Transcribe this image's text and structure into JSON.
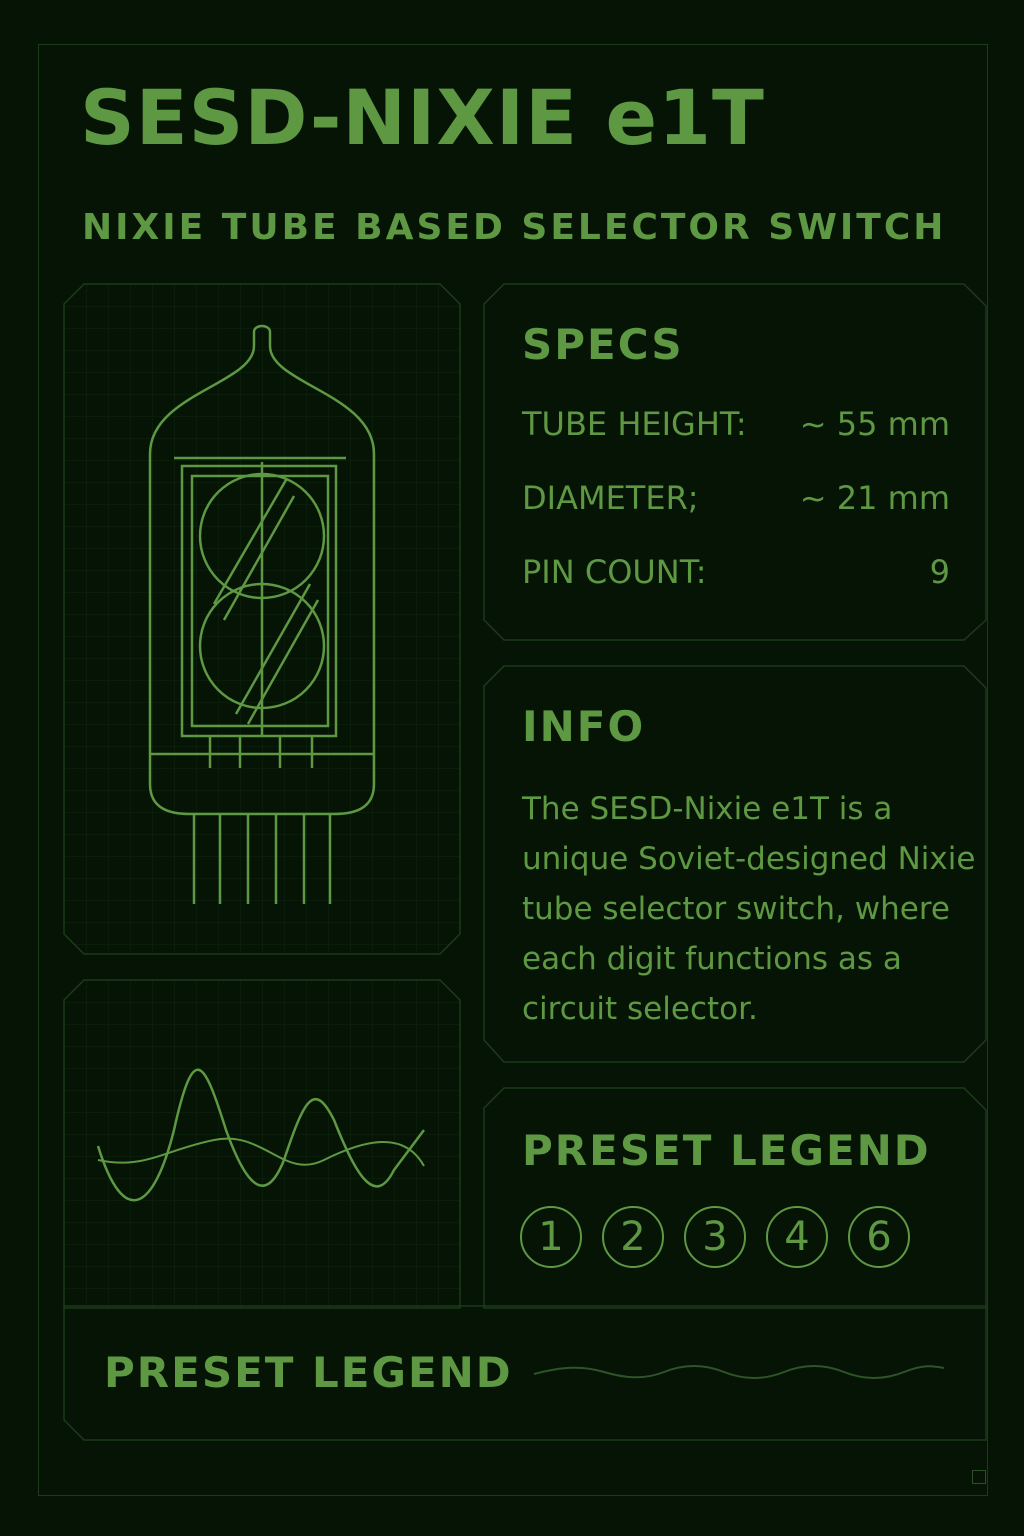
{
  "header": {
    "title": "SESD-NIXIE e1T",
    "subtitle": "NIXIE TUBE BASED SELECTOR SWITCH"
  },
  "tube_illustration": {
    "icon": "nixie-tube-icon",
    "displayed_digit": "8"
  },
  "waveform": {
    "icon": "waveform-icon"
  },
  "specs": {
    "title": "SPECS",
    "rows": [
      {
        "label": "TUBE HEIGHT:",
        "value": "~ 55 mm"
      },
      {
        "label": "DIAMETER;",
        "value": "~ 21 mm"
      },
      {
        "label": "PIN COUNT:",
        "value": "9"
      }
    ]
  },
  "info": {
    "title": "INFO",
    "text": "The SESD-Nixie e1T is a unique Soviet-designed Nixie tube selector switch, where each digit functions as a circuit selector."
  },
  "preset_legend": {
    "title": "PRESET LEGEND",
    "presets": [
      "1",
      "2",
      "3",
      "4",
      "6"
    ]
  },
  "footer": {
    "title": "PRESET LEGEND"
  },
  "colors": {
    "background": "#051405",
    "accent": "#5e9843",
    "border": "#1d3a1a",
    "grid": "#10260f"
  }
}
